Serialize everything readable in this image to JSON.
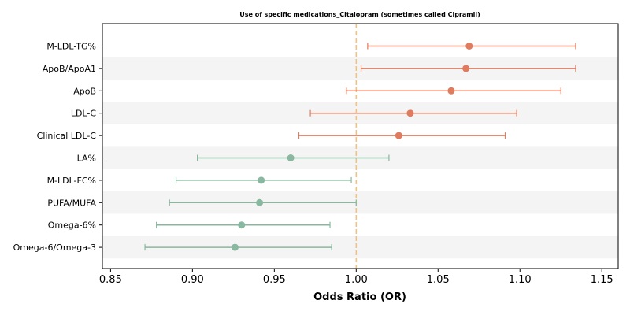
{
  "chart_data": {
    "type": "forest",
    "title": "Use of specific medications_Citalopram (sometimes called Cipramil)",
    "xlabel": "Odds Ratio (OR)",
    "ylabel": "",
    "xlim": [
      0.845,
      1.16
    ],
    "xticks": [
      "0.85",
      "0.90",
      "0.95",
      "1.00",
      "1.05",
      "1.10",
      "1.15"
    ],
    "reference_line": 1.0,
    "grid": false,
    "colors": {
      "positive": "#e07b5e",
      "negative": "#88b9a0",
      "reference": "#f5c07a",
      "band": "#f4f4f4"
    },
    "rows": [
      {
        "label": "M-LDL-TG%",
        "or": 1.069,
        "lo": 1.007,
        "hi": 1.134
      },
      {
        "label": "ApoB/ApoA1",
        "or": 1.067,
        "lo": 1.003,
        "hi": 1.134
      },
      {
        "label": "ApoB",
        "or": 1.058,
        "lo": 0.994,
        "hi": 1.125
      },
      {
        "label": "LDL-C",
        "or": 1.033,
        "lo": 0.972,
        "hi": 1.098
      },
      {
        "label": "Clinical LDL-C",
        "or": 1.026,
        "lo": 0.965,
        "hi": 1.091
      },
      {
        "label": "LA%",
        "or": 0.96,
        "lo": 0.903,
        "hi": 1.02
      },
      {
        "label": "M-LDL-FC%",
        "or": 0.942,
        "lo": 0.89,
        "hi": 0.997
      },
      {
        "label": "PUFA/MUFA",
        "or": 0.941,
        "lo": 0.886,
        "hi": 1.0
      },
      {
        "label": "Omega-6%",
        "or": 0.93,
        "lo": 0.878,
        "hi": 0.984
      },
      {
        "label": "Omega-6/Omega-3",
        "or": 0.926,
        "lo": 0.871,
        "hi": 0.985
      }
    ]
  }
}
